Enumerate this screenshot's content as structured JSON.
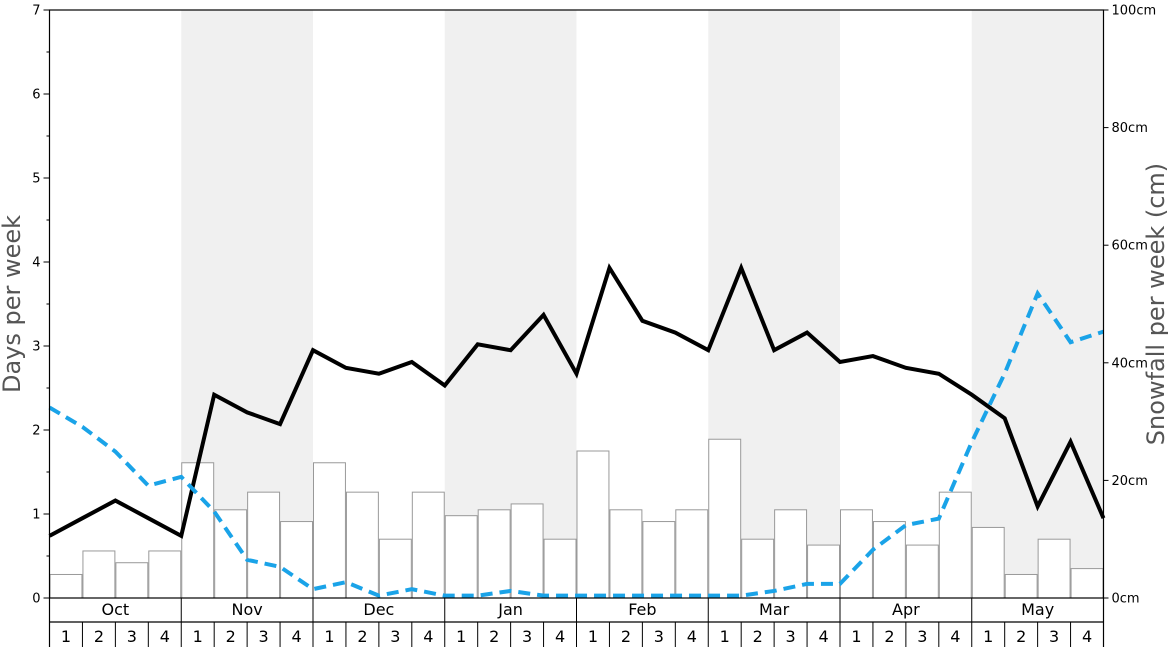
{
  "chart_data": {
    "type": "bar",
    "ylabel_left": "Days per week",
    "ylabel_right": "Snowfall per week (cm)",
    "left_axis": {
      "ylim": [
        0,
        7
      ],
      "ticks": [
        "0",
        "1",
        "2",
        "3",
        "4",
        "5",
        "6",
        "7"
      ]
    },
    "right_axis": {
      "ylim": [
        0,
        100
      ],
      "ticks": [
        "0cm",
        "20cm",
        "40cm",
        "60cm",
        "80cm",
        "100cm"
      ]
    },
    "months": [
      "Oct",
      "Nov",
      "Dec",
      "Jan",
      "Feb",
      "Mar",
      "Apr",
      "May"
    ],
    "week_labels": [
      "1",
      "2",
      "3",
      "4"
    ],
    "shaded_months": [
      "Nov",
      "Jan",
      "Mar",
      "May"
    ],
    "colors": {
      "shade": "#f0f0f0",
      "bar_fill": "#ffffff",
      "bar_stroke": "#999999",
      "days_line": "#000000",
      "secondary_line": "#1aa3e8"
    },
    "series": [
      {
        "kind": "bars",
        "axis": "left",
        "values": [
          0.28,
          0.56,
          0.42,
          0.56,
          1.61,
          1.05,
          1.26,
          0.91,
          1.61,
          1.26,
          0.7,
          1.26,
          0.98,
          1.05,
          1.12,
          0.7,
          1.75,
          1.05,
          0.91,
          1.05,
          1.89,
          0.7,
          1.05,
          0.63,
          1.05,
          0.91,
          0.63,
          1.26,
          0.84,
          0.28,
          0.7,
          0.35
        ]
      },
      {
        "kind": "line",
        "axis": "left",
        "style": "solid",
        "values": [
          0.74,
          0.95,
          1.16,
          0.95,
          0.74,
          2.42,
          2.21,
          2.07,
          2.95,
          2.74,
          2.67,
          2.81,
          2.53,
          3.02,
          2.95,
          3.37,
          2.67,
          3.93,
          3.3,
          3.16,
          2.95,
          3.93,
          2.95,
          3.16,
          2.81,
          2.88,
          2.74,
          2.67,
          2.42,
          2.14,
          1.09,
          1.86,
          0.95
        ]
      },
      {
        "kind": "line",
        "axis": "right",
        "style": "dashed",
        "values": [
          32.4,
          29.1,
          24.9,
          19.1,
          20.6,
          14.7,
          6.5,
          5.3,
          1.5,
          2.7,
          0.4,
          1.5,
          0.4,
          0.4,
          1.2,
          0.4,
          0.4,
          0.4,
          0.4,
          0.4,
          0.4,
          0.4,
          1.2,
          2.4,
          2.4,
          8.2,
          12.4,
          13.5,
          26.5,
          38.2,
          51.8,
          43.5,
          45.3
        ]
      }
    ]
  }
}
